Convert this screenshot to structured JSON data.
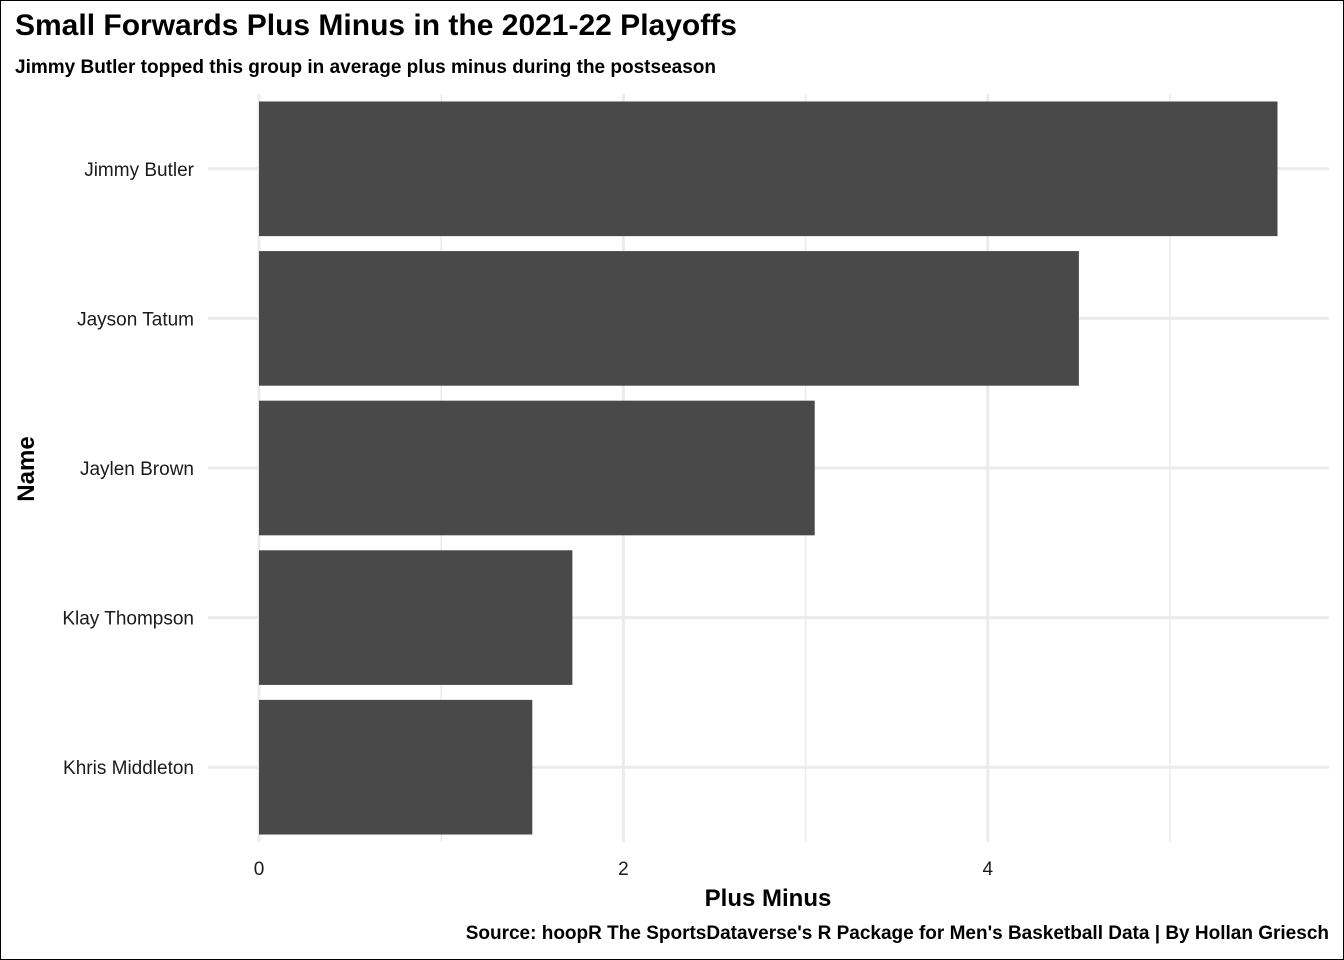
{
  "chart_data": {
    "type": "bar",
    "orientation": "horizontal",
    "title": "Small Forwards Plus Minus in the 2021-22 Playoffs",
    "subtitle": "Jimmy Butler topped this group in average plus minus during the postseason",
    "caption": "Source: hoopR The SportsDataverse's R Package for Men's Basketball Data | By Hollan Griesch",
    "xlabel": "Plus Minus",
    "ylabel": "Name",
    "categories": [
      "Jimmy Butler",
      "Jayson Tatum",
      "Jaylen Brown",
      "Klay Thompson",
      "Khris Middleton"
    ],
    "values": [
      5.59,
      4.5,
      3.05,
      1.72,
      1.5
    ],
    "xlim": [
      0,
      5.87
    ],
    "xticks": [
      0,
      2,
      4
    ],
    "xtick_labels": [
      "0",
      "2",
      "4"
    ],
    "grid": true,
    "bar_color": "#494949",
    "grid_color": "#ebebeb"
  }
}
